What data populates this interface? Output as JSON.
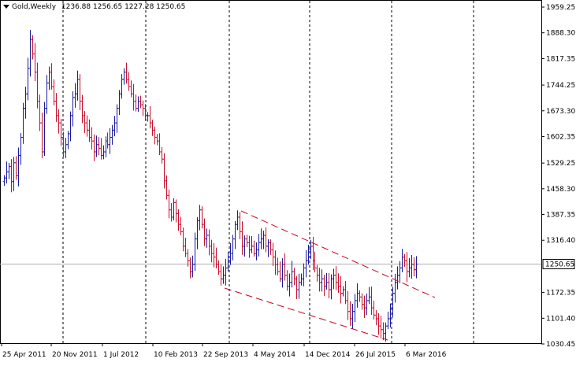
{
  "header": {
    "symbol_timeframe": "Gold,Weekly",
    "ohlc": "1236.88 1256.65 1227.28 1250.65"
  },
  "colors": {
    "bull": "#1a1a9e",
    "bear": "#c8102e",
    "channel": "#d0021b",
    "grid": "#000000",
    "price_line": "#b0b0b0"
  },
  "current_price": {
    "value": 1250.65,
    "label": "1250.65"
  },
  "chart_data": {
    "type": "ohlc",
    "title": "Gold,Weekly",
    "ylim": [
      1030.45,
      1959.25
    ],
    "y_ticks": [
      "1959.25",
      "1888.30",
      "1817.35",
      "1744.25",
      "1673.30",
      "1602.35",
      "1529.25",
      "1458.30",
      "1387.35",
      "1316.40",
      "1250.65",
      "1172.35",
      "1101.40",
      "1030.45"
    ],
    "y_tick_values": [
      1959.25,
      1888.3,
      1817.35,
      1744.25,
      1673.3,
      1602.35,
      1529.25,
      1458.3,
      1387.35,
      1316.4,
      1250.65,
      1172.35,
      1101.4,
      1030.45
    ],
    "x_labels": [
      "25 Apr 2011",
      "20 Nov 2011",
      "1 Jul 2012",
      "10 Feb 2013",
      "22 Sep 2013",
      "4 May 2014",
      "14 Dec 2014",
      "26 Jul 2015",
      "6 Mar 2016"
    ],
    "grid": "vertical dashed",
    "closes": [
      1488,
      1505,
      1520,
      1478,
      1530,
      1495,
      1550,
      1600,
      1680,
      1720,
      1790,
      1870,
      1830,
      1780,
      1700,
      1640,
      1560,
      1680,
      1750,
      1780,
      1740,
      1700,
      1660,
      1640,
      1600,
      1560,
      1580,
      1610,
      1660,
      1710,
      1720,
      1760,
      1700,
      1660,
      1640,
      1620,
      1600,
      1590,
      1560,
      1580,
      1570,
      1550,
      1560,
      1590,
      1580,
      1600,
      1620,
      1640,
      1680,
      1720,
      1760,
      1780,
      1760,
      1740,
      1720,
      1700,
      1680,
      1700,
      1690,
      1680,
      1660,
      1660,
      1640,
      1620,
      1600,
      1590,
      1560,
      1540,
      1480,
      1440,
      1400,
      1380,
      1420,
      1390,
      1360,
      1340,
      1300,
      1280,
      1260,
      1230,
      1250,
      1320,
      1370,
      1400,
      1360,
      1320,
      1330,
      1300,
      1280,
      1270,
      1250,
      1230,
      1210,
      1220,
      1240,
      1260,
      1280,
      1320,
      1360,
      1380,
      1340,
      1300,
      1320,
      1310,
      1290,
      1300,
      1280,
      1290,
      1310,
      1320,
      1330,
      1300,
      1310,
      1290,
      1270,
      1250,
      1230,
      1210,
      1250,
      1220,
      1190,
      1200,
      1230,
      1210,
      1180,
      1200,
      1210,
      1240,
      1260,
      1290,
      1300,
      1260,
      1240,
      1220,
      1200,
      1210,
      1190,
      1200,
      1180,
      1210,
      1220,
      1200,
      1190,
      1170,
      1180,
      1150,
      1120,
      1100,
      1120,
      1150,
      1170,
      1160,
      1140,
      1130,
      1150,
      1160,
      1130,
      1110,
      1100,
      1080,
      1070,
      1060,
      1080,
      1100,
      1130,
      1170,
      1200,
      1220,
      1240,
      1270,
      1260,
      1230,
      1240,
      1250,
      1235,
      1250.65
    ]
  },
  "annotations": {
    "channel": "descending trend channel (red dashed)"
  }
}
